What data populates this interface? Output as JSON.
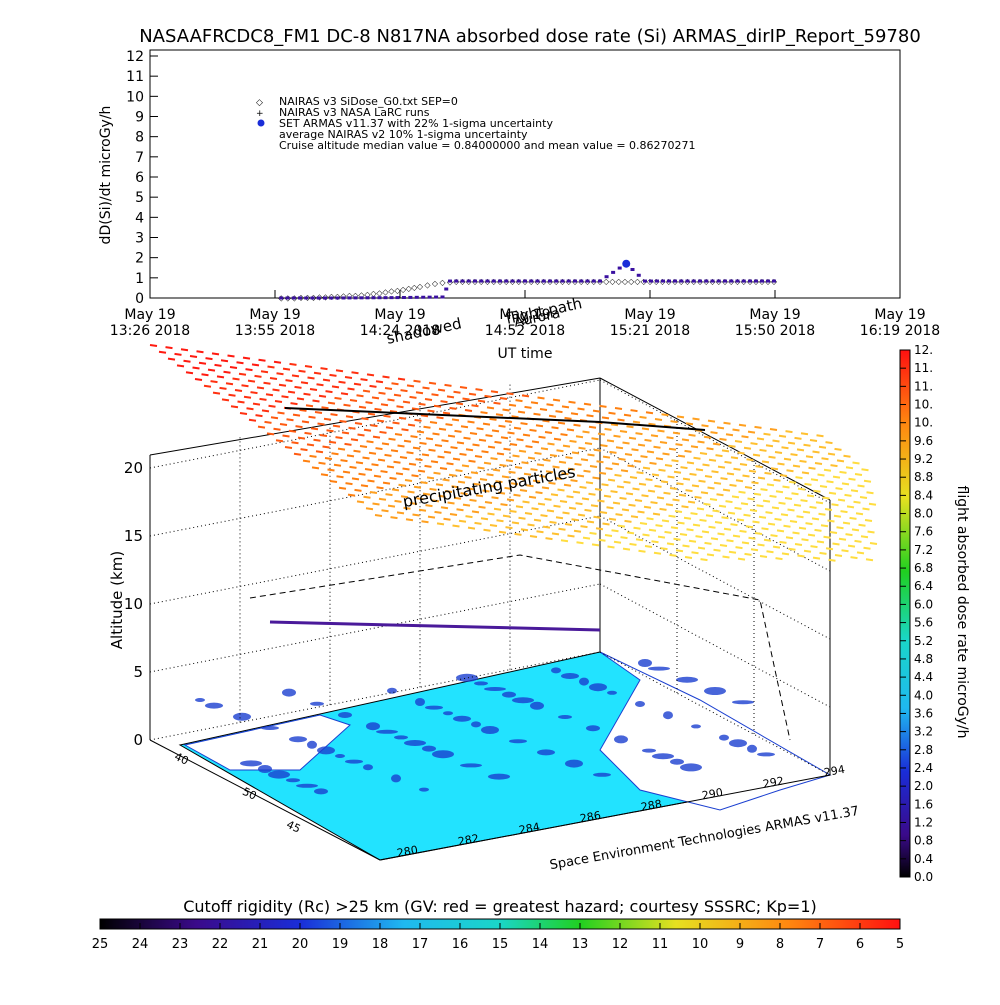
{
  "title": "NASAAFRCDC8_FM1 DC-8    N817NA absorbed dose rate (Si) ARMAS_dirIP_Report_59780",
  "chart_data": [
    {
      "type": "scatter",
      "ylabel": "dD(Si)/dt microGy/h",
      "xlabel": "UT time",
      "ylim": [
        0,
        12
      ],
      "y_ticks": [
        "0",
        "1",
        "2",
        "3",
        "4",
        "5",
        "6",
        "7",
        "8",
        "9",
        "10",
        "11",
        "12"
      ],
      "x_ticks": [
        {
          "top": "May 19",
          "bottom": "13:26 2018"
        },
        {
          "top": "May 19",
          "bottom": "13:55 2018"
        },
        {
          "top": "May 19",
          "bottom": "14:24 2018"
        },
        {
          "top": "May 19",
          "bottom": "14:52 2018"
        },
        {
          "top": "May 19",
          "bottom": "15:21 2018"
        },
        {
          "top": "May 19",
          "bottom": "15:50 2018"
        },
        {
          "top": "May 19",
          "bottom": "16:19 2018"
        }
      ],
      "legend": [
        "NAIRAS v3 SiDose_G0.txt SEP=0",
        "NAIRAS v3 NASA LaRC runs",
        "SET ARMAS v11.37 with 22% 1-sigma uncertainty",
        "average NAIRAS v2 10% 1-sigma uncertainty",
        "Cruise altitude median value = 0.84000000 and mean value = 0.86270271"
      ],
      "series": [
        {
          "name": "NAIRAS v3 SiDose_G0.txt SEP=0",
          "color": "#888888",
          "points": [
            [
              0.175,
              0.02
            ],
            [
              0.21,
              0.05
            ],
            [
              0.25,
              0.1
            ],
            [
              0.29,
              0.2
            ],
            [
              0.33,
              0.4
            ],
            [
              0.36,
              0.6
            ],
            [
              0.38,
              0.75
            ],
            [
              0.4,
              0.83
            ],
            [
              0.45,
              0.84
            ],
            [
              0.5,
              0.84
            ],
            [
              0.55,
              0.84
            ],
            [
              0.6,
              0.84
            ],
            [
              0.65,
              0.84
            ],
            [
              0.7,
              0.84
            ],
            [
              0.75,
              0.84
            ],
            [
              0.8,
              0.84
            ],
            [
              0.84,
              0.84
            ]
          ]
        },
        {
          "name": "SET ARMAS v11.37 with 22% 1-sigma uncertainty",
          "color": "#3a10a0",
          "points": [
            [
              0.175,
              0.0
            ],
            [
              0.25,
              0.0
            ],
            [
              0.33,
              0.02
            ],
            [
              0.39,
              0.05
            ],
            [
              0.4,
              0.84
            ],
            [
              0.45,
              0.84
            ],
            [
              0.5,
              0.84
            ],
            [
              0.55,
              0.84
            ],
            [
              0.6,
              0.84
            ],
            [
              0.635,
              1.7
            ],
            [
              0.66,
              0.84
            ],
            [
              0.7,
              0.84
            ],
            [
              0.75,
              0.84
            ],
            [
              0.8,
              0.84
            ],
            [
              0.84,
              0.84
            ]
          ]
        }
      ],
      "annotations": [
        "flight path",
        "shadowed",
        "Aurora"
      ]
    },
    {
      "type": "scatter",
      "zlabel": "Altitude (km)",
      "z_ticks": [
        "0",
        "5",
        "10",
        "15",
        "20"
      ],
      "lon_ticks": [
        "280",
        "282",
        "284",
        "286",
        "288",
        "290",
        "292",
        "294"
      ],
      "lat_ticks": [
        "40",
        "45",
        "50"
      ],
      "annotation": "precipitating particles",
      "credit": "Space Environment Technologies ARMAS v11.37",
      "colorbar": {
        "label": "flight absorbed dose rate microGy/h",
        "ticks": [
          "0.0",
          "0.4",
          "0.8",
          "1.2",
          "1.6",
          "2.0",
          "2.4",
          "2.8",
          "3.2",
          "3.6",
          "4.0",
          "4.4",
          "4.8",
          "5.2",
          "5.6",
          "6.0",
          "6.4",
          "6.8",
          "7.2",
          "7.6",
          "8.0",
          "8.4",
          "8.8",
          "9.2",
          "9.6",
          "10.",
          "10.",
          "11.",
          "11.",
          "12."
        ]
      }
    },
    {
      "type": "heatmap",
      "title": "Cutoff rigidity (Rc) >25 km (GV: red = greatest hazard; courtesy SSSRC; Kp=1)",
      "ticks": [
        "25",
        "24",
        "23",
        "22",
        "21",
        "20",
        "19",
        "18",
        "17",
        "16",
        "15",
        "14",
        "13",
        "12",
        "11",
        "10",
        "9",
        "8",
        "7",
        "6",
        "5"
      ]
    }
  ]
}
